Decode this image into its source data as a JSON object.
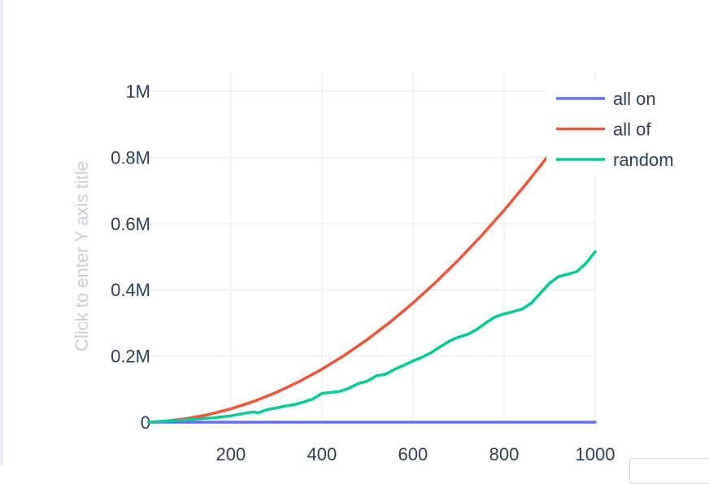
{
  "chart_data": {
    "type": "line",
    "title": "",
    "xlabel": "",
    "ylabel": "Click to enter Y axis title",
    "xlim": [
      20,
      1000
    ],
    "ylim": [
      0,
      1000000
    ],
    "grid": true,
    "legend_position": "top-right",
    "x_ticks": [
      200,
      400,
      600,
      800,
      1000
    ],
    "y_ticks": [
      0,
      200000,
      400000,
      600000,
      800000,
      1000000
    ],
    "x_tick_labels": [
      "200",
      "400",
      "600",
      "800",
      "1000"
    ],
    "y_tick_labels": [
      "0",
      "0.2M",
      "0.4M",
      "0.6M",
      "0.8M",
      "1M"
    ],
    "series": [
      {
        "name": "all on",
        "color": "#636efa",
        "x": [
          20,
          1000
        ],
        "y": [
          0,
          0
        ]
      },
      {
        "name": "all of",
        "color": "#ef553b",
        "x": [
          20,
          60,
          100,
          150,
          200,
          250,
          300,
          350,
          400,
          450,
          500,
          550,
          600,
          650,
          700,
          750,
          800,
          850,
          900,
          950,
          1000
        ],
        "y": [
          0,
          3600,
          10000,
          22500,
          40000,
          62500,
          90000,
          122500,
          160000,
          202500,
          250000,
          302500,
          360000,
          422500,
          490000,
          562500,
          640000,
          722500,
          810000,
          902500,
          1000000
        ]
      },
      {
        "name": "random",
        "color": "#00cc96",
        "x": [
          20,
          40,
          60,
          80,
          100,
          120,
          140,
          160,
          180,
          200,
          220,
          240,
          250,
          260,
          280,
          300,
          320,
          340,
          360,
          380,
          400,
          420,
          440,
          460,
          480,
          500,
          520,
          540,
          560,
          580,
          600,
          620,
          640,
          660,
          680,
          700,
          720,
          740,
          760,
          780,
          800,
          820,
          840,
          860,
          880,
          900,
          920,
          940,
          960,
          980,
          1000
        ],
        "y": [
          0,
          2000,
          4000,
          5000,
          7000,
          9000,
          11000,
          13000,
          16000,
          19000,
          24000,
          29000,
          31000,
          28000,
          38000,
          43000,
          49000,
          53000,
          61000,
          70000,
          87000,
          90000,
          93000,
          103000,
          117000,
          124000,
          140000,
          145000,
          160000,
          172000,
          185000,
          196000,
          210000,
          228000,
          245000,
          257000,
          265000,
          280000,
          300000,
          318000,
          327000,
          334000,
          342000,
          360000,
          390000,
          420000,
          440000,
          447000,
          455000,
          480000,
          515000
        ]
      }
    ]
  }
}
